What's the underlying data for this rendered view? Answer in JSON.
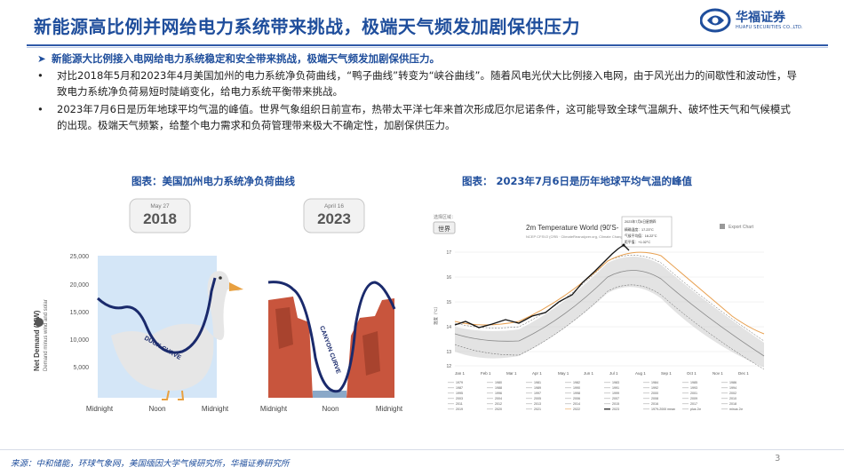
{
  "header": {
    "title": "新能源高比例并网给电力系统带来挑战，极端天气频发加剧保供压力",
    "logo_name": "华福证券",
    "logo_sub": "HUAFU SECURITIES CO.,LTD."
  },
  "summary": "新能源大比例接入电网给电力系统稳定和安全带来挑战，极端天气频发加剧保供压力。",
  "bullets": [
    "对比2018年5月和2023年4月美国加州的电力系统净负荷曲线，“鸭子曲线”转变为“峡谷曲线”。随着风电光伏大比例接入电网，由于风光出力的间歇性和波动性，导致电力系统净负荷易短时陡峭变化，给电力系统平衡带来挑战。",
    "2023年7月6日是历年地球平均气温的峰值。世界气象组织日前宣布，热带太平洋七年来首次形成厄尔尼诺条件，这可能导致全球气温飙升、破坏性天气和气候模式的出现。极端天气频繁，给整个电力需求和负荷管理带来极大不确定性，加剧保供压力。"
  ],
  "figures": {
    "left_caption": "图表：美国加州电力系统净负荷曲线",
    "right_caption": "图表： 2023年7月6日是历年地球平均气温的峰值"
  },
  "duck_chart": {
    "card_2018": {
      "date": "May 27",
      "year": "2018"
    },
    "card_2023": {
      "date": "April 16",
      "year": "2023"
    },
    "y_label": "Net Demand (MW)",
    "y_sublabel": "Demand minus wind and solar",
    "y_ticks": [
      "25,000",
      "20,000",
      "15,000",
      "10,000",
      "5,000"
    ],
    "x_ticks": [
      "Midnight",
      "Noon",
      "Midnight",
      "Midnight",
      "Noon",
      "Midnight"
    ],
    "duck_label": "DUCK CURVE",
    "canyon_label": "CANYON CURVE",
    "colors": {
      "duck_bg": "#d4e6f7",
      "curve": "#1a2a6c",
      "canyon": "#c8553d"
    }
  },
  "temp_chart": {
    "corner_label": "选择区域：",
    "region_button": "世界",
    "title": "2m Temperature World (90'S-",
    "subtitle": "NCEP CFSV2 (CRB · ClimateReanalyzer.org, Climate Change",
    "export_label": "Export Chart",
    "tooltip": {
      "date": "2023年7月6日星期四",
      "l1": "精确温度：17.23°C",
      "l2": "气候平均值：16.22°C",
      "l3": "距平值：+1.02°C"
    },
    "y_axis_label": "温度（°C）",
    "y_ticks": [
      "17",
      "16",
      "15",
      "14",
      "13",
      "12"
    ],
    "x_ticks": [
      "Jan 1",
      "Feb 1",
      "Mar 1",
      "Apr 1",
      "May 1",
      "Jun 1",
      "Jul 1",
      "Aug 1",
      "Sep 1",
      "Oct 1",
      "Nov 1",
      "Dec 1"
    ],
    "legend_years": [
      "1979",
      "1980",
      "1981",
      "1982",
      "1983",
      "1984",
      "1985",
      "1986",
      "1987",
      "1988",
      "1989",
      "1990",
      "1991",
      "1992",
      "1993",
      "1994",
      "1995",
      "1996",
      "1997",
      "1998",
      "1999",
      "2000",
      "2001",
      "2002",
      "2003",
      "2004",
      "2005",
      "2006",
      "2007",
      "2008",
      "2009",
      "2010",
      "2011",
      "2012",
      "2013",
      "2014",
      "2015",
      "2016",
      "2017",
      "2018",
      "2019",
      "2020",
      "2021",
      "2022",
      "2023"
    ],
    "legend_extra": [
      "1979-2000 mean",
      "plus 2σ",
      "minus 2σ"
    ],
    "colors": {
      "y2023": "#111111",
      "y2022": "#e8a050",
      "band": "#cccccc"
    }
  },
  "footer": {
    "source": "来源：中和储能，环球气象网，美国缅因大学气候研究所，华福证券研究所",
    "page": "3"
  }
}
